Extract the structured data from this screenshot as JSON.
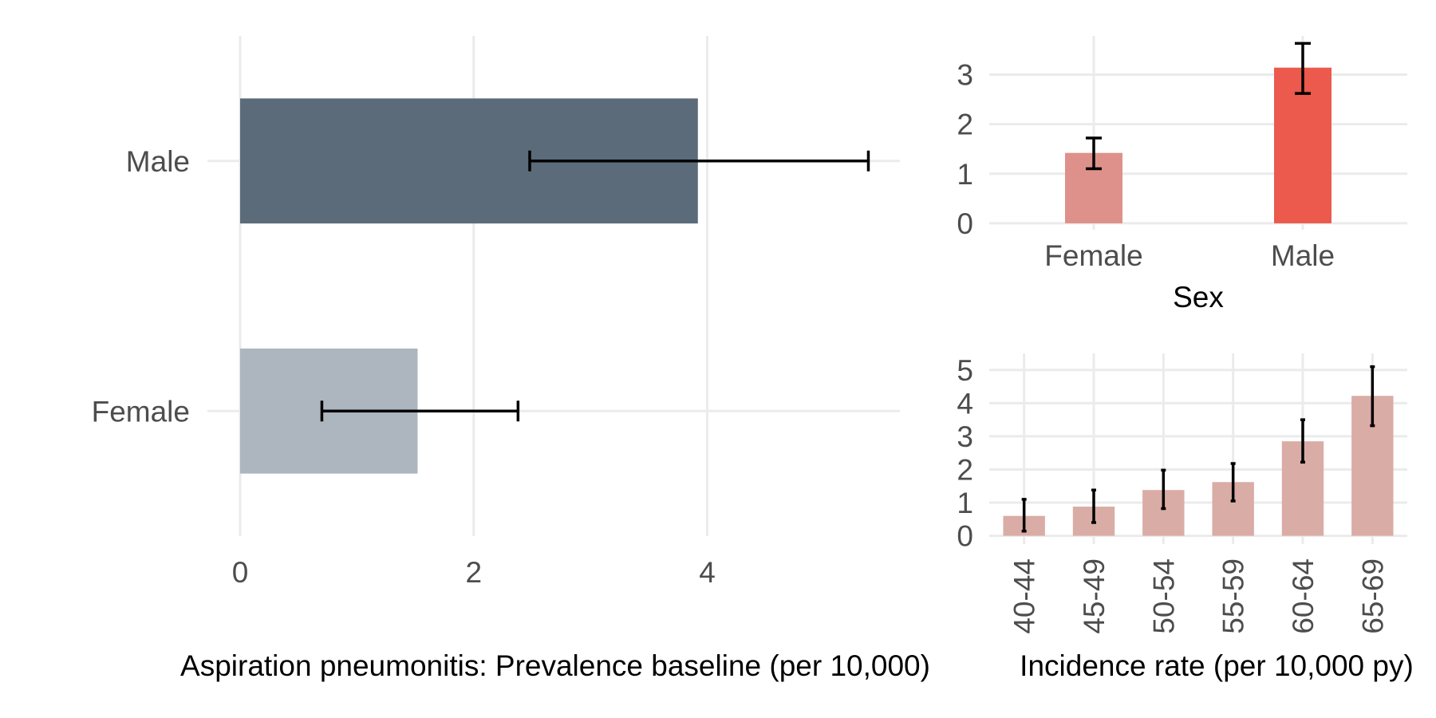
{
  "chart_data": [
    {
      "type": "bar",
      "orientation": "horizontal",
      "categories": [
        "Female",
        "Male"
      ],
      "values": [
        1.52,
        3.92
      ],
      "error_low": [
        0.7,
        2.48
      ],
      "error_high": [
        2.38,
        5.38
      ],
      "colors": [
        "#adb5be",
        "#5c6b7a"
      ],
      "xlabel": "Aspiration pneumonitis: Prevalence baseline (per 10,000)",
      "ylabel": "",
      "xlim": [
        -0.28,
        5.65
      ],
      "xticks": [
        "0",
        "2",
        "4"
      ],
      "xtick_values": [
        0,
        2,
        4
      ],
      "grid": true
    },
    {
      "type": "bar",
      "categories": [
        "Female",
        "Male"
      ],
      "values": [
        1.42,
        3.14
      ],
      "error_low": [
        1.1,
        2.62
      ],
      "error_high": [
        1.72,
        3.63
      ],
      "colors": [
        "#de918a",
        "#eb5a4c"
      ],
      "xlabel": "Sex",
      "ylabel": "",
      "ylim": [
        -0.13,
        3.78
      ],
      "yticks": [
        "0",
        "1",
        "2",
        "3"
      ],
      "ytick_values": [
        0,
        1,
        2,
        3
      ],
      "grid": true
    },
    {
      "type": "bar",
      "categories": [
        "40-44",
        "45-49",
        "50-54",
        "55-59",
        "60-64",
        "65-69"
      ],
      "values": [
        0.6,
        0.88,
        1.38,
        1.62,
        2.85,
        4.22
      ],
      "error_low": [
        0.14,
        0.4,
        0.82,
        1.05,
        2.22,
        3.32
      ],
      "error_high": [
        1.1,
        1.38,
        1.98,
        2.18,
        3.5,
        5.1
      ],
      "color": "#daaca6",
      "xlabel": "Incidence rate (per 10,000 py)",
      "ylabel": "",
      "ylim": [
        -0.25,
        5.5
      ],
      "yticks": [
        "0",
        "1",
        "2",
        "3",
        "4",
        "5"
      ],
      "ytick_values": [
        0,
        1,
        2,
        3,
        4,
        5
      ],
      "grid": true
    }
  ]
}
